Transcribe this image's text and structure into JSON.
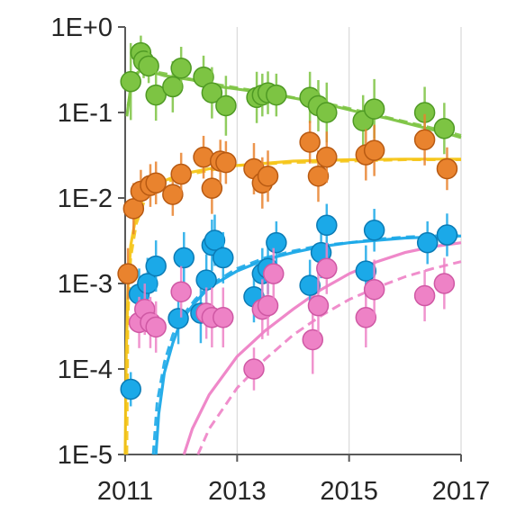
{
  "chart_data": {
    "type": "scatter",
    "title": "",
    "xlabel": "",
    "ylabel": "",
    "xlim": [
      2011,
      2017
    ],
    "ylim": [
      1e-05,
      1
    ],
    "y_scale": "log",
    "grid": {
      "vertical": true,
      "horizontal": false
    },
    "x_ticks": [
      "2011",
      "2013",
      "2015",
      "2017"
    ],
    "y_ticks": [
      "1E+0",
      "1E-1",
      "1E-2",
      "1E-3",
      "1E-4",
      "1E-5"
    ],
    "series": [
      {
        "color": "#7dc443",
        "edge": "#4f9a24",
        "x": [
          2011.1,
          2011.28,
          2011.33,
          2011.42,
          2011.55,
          2011.85,
          2012.0,
          2012.4,
          2012.55,
          2012.8,
          2013.35,
          2013.45,
          2013.55,
          2013.7,
          2014.3,
          2014.45,
          2014.6,
          2015.25,
          2015.45,
          2016.35,
          2016.7
        ],
        "y": [
          0.23,
          0.5,
          0.4,
          0.35,
          0.16,
          0.2,
          0.33,
          0.26,
          0.17,
          0.12,
          0.15,
          0.16,
          0.17,
          0.16,
          0.15,
          0.12,
          0.1,
          0.08,
          0.11,
          0.1,
          0.065
        ],
        "err": [
          0.45,
          0.2,
          0.2,
          0.2,
          0.3,
          0.3,
          0.25,
          0.25,
          0.3,
          0.35,
          0.3,
          0.25,
          0.25,
          0.25,
          0.3,
          0.3,
          0.35,
          0.3,
          0.35,
          0.3,
          0.3
        ],
        "fit_solid": [
          [
            2011.03,
            0.09
          ],
          [
            2011.12,
            0.26
          ],
          [
            2011.3,
            0.32
          ],
          [
            2011.7,
            0.27
          ],
          [
            2012.2,
            0.24
          ],
          [
            2012.7,
            0.2
          ],
          [
            2013.2,
            0.18
          ],
          [
            2013.7,
            0.16
          ],
          [
            2014.2,
            0.14
          ],
          [
            2014.7,
            0.12
          ],
          [
            2015.2,
            0.1
          ],
          [
            2015.7,
            0.085
          ],
          [
            2016.2,
            0.07
          ],
          [
            2016.7,
            0.058
          ],
          [
            2017.0,
            0.051
          ]
        ],
        "fit_dashed": [
          [
            2011.05,
            0.12
          ],
          [
            2011.15,
            0.28
          ],
          [
            2011.4,
            0.31
          ],
          [
            2011.9,
            0.27
          ],
          [
            2012.5,
            0.22
          ],
          [
            2013.2,
            0.185
          ],
          [
            2014.0,
            0.15
          ],
          [
            2014.8,
            0.12
          ],
          [
            2015.6,
            0.09
          ],
          [
            2016.4,
            0.068
          ],
          [
            2017.0,
            0.054
          ]
        ]
      },
      {
        "color": "#e9832e",
        "edge": "#b85a12",
        "fit_color": "#f5c518",
        "x": [
          2011.05,
          2011.15,
          2011.28,
          2011.45,
          2011.55,
          2011.85,
          2012.0,
          2012.4,
          2012.55,
          2012.7,
          2012.8,
          2013.3,
          2013.45,
          2013.55,
          2014.3,
          2014.45,
          2014.6,
          2015.3,
          2015.45,
          2016.35,
          2016.75
        ],
        "y": [
          0.0013,
          0.0075,
          0.012,
          0.014,
          0.015,
          0.011,
          0.019,
          0.03,
          0.013,
          0.027,
          0.026,
          0.022,
          0.015,
          0.018,
          0.045,
          0.018,
          0.03,
          0.032,
          0.036,
          0.048,
          0.022
        ],
        "err": [
          0.3,
          0.3,
          0.25,
          0.25,
          0.25,
          0.25,
          0.25,
          0.25,
          0.3,
          0.25,
          0.25,
          0.3,
          0.3,
          0.3,
          0.25,
          0.3,
          0.3,
          0.3,
          0.3,
          0.3,
          0.25
        ],
        "fit_solid": [
          [
            2011.0,
            1e-05
          ],
          [
            2011.02,
            0.00015
          ],
          [
            2011.05,
            0.0009
          ],
          [
            2011.1,
            0.0028
          ],
          [
            2011.2,
            0.0065
          ],
          [
            2011.35,
            0.011
          ],
          [
            2011.6,
            0.015
          ],
          [
            2012.0,
            0.019
          ],
          [
            2012.5,
            0.022
          ],
          [
            2013.0,
            0.024
          ],
          [
            2014.0,
            0.027
          ],
          [
            2015.0,
            0.028
          ],
          [
            2016.0,
            0.0285
          ],
          [
            2017.0,
            0.0285
          ]
        ],
        "fit_dashed": [
          [
            2011.03,
            1e-05
          ],
          [
            2011.05,
            0.0004
          ],
          [
            2011.1,
            0.002
          ],
          [
            2011.2,
            0.005
          ],
          [
            2011.35,
            0.0095
          ],
          [
            2011.6,
            0.014
          ],
          [
            2012.0,
            0.018
          ],
          [
            2012.5,
            0.021
          ],
          [
            2013.0,
            0.024
          ],
          [
            2014.0,
            0.026
          ],
          [
            2015.0,
            0.027
          ],
          [
            2016.0,
            0.028
          ],
          [
            2017.0,
            0.028
          ]
        ]
      },
      {
        "color": "#1ba9e8",
        "edge": "#0b7bb5",
        "x": [
          2011.1,
          2011.25,
          2011.4,
          2011.55,
          2011.95,
          2012.05,
          2012.35,
          2012.45,
          2012.55,
          2012.6,
          2012.75,
          2013.3,
          2013.45,
          2013.55,
          2013.7,
          2014.3,
          2014.5,
          2014.6,
          2015.3,
          2015.45,
          2016.4,
          2016.75
        ],
        "y": [
          5.8e-05,
          0.00075,
          0.001,
          0.0016,
          0.00039,
          0.002,
          0.00045,
          0.0011,
          0.0028,
          0.0032,
          0.002,
          0.0007,
          0.0013,
          0.0015,
          0.003,
          0.00095,
          0.0023,
          0.0048,
          0.0014,
          0.0042,
          0.003,
          0.0037
        ],
        "err": [
          0.2,
          0.3,
          0.3,
          0.3,
          0.3,
          0.3,
          0.35,
          0.3,
          0.3,
          0.3,
          0.3,
          0.3,
          0.3,
          0.3,
          0.25,
          0.3,
          0.3,
          0.25,
          0.3,
          0.25,
          0.25,
          0.25
        ],
        "fit_solid": [
          [
            2011.55,
            1e-05
          ],
          [
            2011.6,
            3e-05
          ],
          [
            2011.7,
            9e-05
          ],
          [
            2011.85,
            0.0002
          ],
          [
            2012.0,
            0.00037
          ],
          [
            2012.25,
            0.0006
          ],
          [
            2012.5,
            0.0009
          ],
          [
            2013.0,
            0.0014
          ],
          [
            2013.5,
            0.0019
          ],
          [
            2014.0,
            0.0023
          ],
          [
            2014.5,
            0.0027
          ],
          [
            2015.0,
            0.003
          ],
          [
            2015.5,
            0.0032
          ],
          [
            2016.0,
            0.0034
          ],
          [
            2016.5,
            0.0035
          ],
          [
            2017.0,
            0.0036
          ]
        ],
        "fit_dashed": [
          [
            2011.5,
            1e-05
          ],
          [
            2011.57,
            4e-05
          ],
          [
            2011.7,
            0.00012
          ],
          [
            2011.85,
            0.00025
          ],
          [
            2012.0,
            0.0004
          ],
          [
            2012.25,
            0.00065
          ],
          [
            2012.5,
            0.00095
          ],
          [
            2013.0,
            0.0015
          ],
          [
            2013.5,
            0.002
          ],
          [
            2014.0,
            0.0024
          ],
          [
            2014.5,
            0.0028
          ],
          [
            2015.0,
            0.003
          ],
          [
            2015.5,
            0.0033
          ],
          [
            2016.0,
            0.0035
          ],
          [
            2016.5,
            0.0036
          ],
          [
            2017.0,
            0.0037
          ]
        ]
      },
      {
        "color": "#ee82c6",
        "edge": "#cf58a4",
        "x": [
          2011.25,
          2011.35,
          2011.45,
          2011.55,
          2012.0,
          2012.45,
          2012.55,
          2012.75,
          2013.3,
          2013.45,
          2013.55,
          2013.65,
          2014.35,
          2014.45,
          2014.6,
          2015.3,
          2015.45,
          2016.35,
          2016.7
        ],
        "y": [
          0.00035,
          0.0005,
          0.00035,
          0.00031,
          0.0008,
          0.00045,
          0.0004,
          0.0004,
          0.0001,
          0.0005,
          0.00055,
          0.0013,
          0.00022,
          0.00055,
          0.0015,
          0.0004,
          0.00085,
          0.00072,
          0.001
        ],
        "err": [
          0.3,
          0.3,
          0.3,
          0.3,
          0.3,
          0.3,
          0.35,
          0.35,
          0.25,
          0.35,
          0.35,
          0.3,
          0.4,
          0.4,
          0.3,
          0.35,
          0.35,
          0.3,
          0.3
        ],
        "fit_solid": [
          [
            2012.05,
            1e-05
          ],
          [
            2012.2,
            2e-05
          ],
          [
            2012.5,
            5e-05
          ],
          [
            2013.0,
            0.00014
          ],
          [
            2013.5,
            0.00028
          ],
          [
            2014.0,
            0.0005
          ],
          [
            2014.5,
            0.00085
          ],
          [
            2015.0,
            0.0013
          ],
          [
            2015.5,
            0.0018
          ],
          [
            2016.0,
            0.0023
          ],
          [
            2016.5,
            0.0027
          ],
          [
            2017.0,
            0.003
          ]
        ],
        "fit_dashed": [
          [
            2012.3,
            1e-05
          ],
          [
            2012.5,
            2e-05
          ],
          [
            2013.0,
            6e-05
          ],
          [
            2013.5,
            0.00013
          ],
          [
            2014.0,
            0.00025
          ],
          [
            2014.5,
            0.00042
          ],
          [
            2015.0,
            0.00065
          ],
          [
            2015.5,
            0.0009
          ],
          [
            2016.0,
            0.0012
          ],
          [
            2016.5,
            0.0015
          ],
          [
            2017.0,
            0.0018
          ]
        ]
      }
    ]
  }
}
